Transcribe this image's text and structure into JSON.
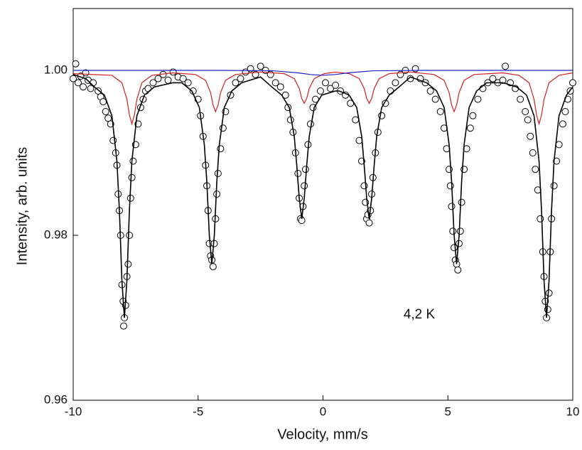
{
  "chart_data": {
    "type": "scatter",
    "xlabel": "Velocity, mm/s",
    "ylabel": "Intensity, arb. units",
    "annotation": "4,2 K",
    "xlim": [
      -10,
      10
    ],
    "ylim": [
      0.96,
      1.0075
    ],
    "xticks": [
      -10,
      -5,
      0,
      5,
      10
    ],
    "yticks": [
      0.96,
      0.98,
      {
        "value": 1.0,
        "label": "1.00"
      }
    ],
    "series": [
      {
        "type": "scatter",
        "color": "#000000",
        "x": [
          -10,
          -9.9,
          -9.8,
          -9.7,
          -9.6,
          -9.5,
          -9.4,
          -9.3,
          -9.2,
          -9.0,
          -8.9,
          -8.8,
          -8.7,
          -8.6,
          -8.5,
          -8.4,
          -8.3,
          -8.25,
          -8.2,
          -8.15,
          -8.1,
          -8.05,
          -8.0,
          -7.98,
          -7.95,
          -7.9,
          -7.85,
          -7.8,
          -7.75,
          -7.7,
          -7.65,
          -7.6,
          -7.5,
          -7.4,
          -7.3,
          -7.2,
          -7.1,
          -7.0,
          -6.8,
          -6.6,
          -6.4,
          -6.2,
          -6.0,
          -5.8,
          -5.6,
          -5.4,
          -5.2,
          -5.0,
          -4.9,
          -4.8,
          -4.7,
          -4.65,
          -4.6,
          -4.55,
          -4.5,
          -4.45,
          -4.4,
          -4.35,
          -4.3,
          -4.25,
          -4.2,
          -4.1,
          -4.0,
          -3.9,
          -3.7,
          -3.5,
          -3.3,
          -3.1,
          -2.9,
          -2.7,
          -2.5,
          -2.3,
          -2.1,
          -1.9,
          -1.7,
          -1.5,
          -1.4,
          -1.3,
          -1.2,
          -1.1,
          -1.0,
          -0.95,
          -0.9,
          -0.85,
          -0.8,
          -0.75,
          -0.7,
          -0.6,
          -0.5,
          -0.4,
          -0.3,
          -0.1,
          0.1,
          0.3,
          0.5,
          0.7,
          0.9,
          1.1,
          1.3,
          1.45,
          1.55,
          1.65,
          1.7,
          1.75,
          1.8,
          1.85,
          1.9,
          1.95,
          2.0,
          2.1,
          2.2,
          2.35,
          2.5,
          2.7,
          2.9,
          3.1,
          3.3,
          3.5,
          3.7,
          3.9,
          4.1,
          4.3,
          4.5,
          4.7,
          4.85,
          4.95,
          5.05,
          5.1,
          5.15,
          5.2,
          5.25,
          5.3,
          5.35,
          5.4,
          5.45,
          5.5,
          5.55,
          5.65,
          5.75,
          5.9,
          6.0,
          6.2,
          6.4,
          6.6,
          6.8,
          7.0,
          7.2,
          7.3,
          7.5,
          7.7,
          7.9,
          8.1,
          8.2,
          8.3,
          8.4,
          8.5,
          8.6,
          8.7,
          8.8,
          8.85,
          8.9,
          8.95,
          9.0,
          9.05,
          9.1,
          9.15,
          9.25,
          9.35,
          9.45,
          9.6,
          9.7,
          9.8,
          9.9,
          10.0
        ],
        "values": [
          0.999,
          1.0008,
          0.9985,
          0.9993,
          0.998,
          0.9997,
          0.9988,
          0.9978,
          0.9985,
          0.9975,
          0.9968,
          0.9962,
          0.995,
          0.9942,
          0.9935,
          0.9915,
          0.99,
          0.9885,
          0.985,
          0.983,
          0.98,
          0.974,
          0.972,
          0.969,
          0.97,
          0.9715,
          0.975,
          0.9765,
          0.98,
          0.9845,
          0.987,
          0.989,
          0.991,
          0.9935,
          0.9955,
          0.9965,
          0.9975,
          0.9978,
          0.9985,
          0.999,
          0.9995,
          0.9988,
          0.9998,
          0.9992,
          0.999,
          0.9985,
          0.9975,
          0.9965,
          0.9945,
          0.992,
          0.9885,
          0.986,
          0.983,
          0.979,
          0.9775,
          0.977,
          0.9762,
          0.979,
          0.982,
          0.985,
          0.9875,
          0.9905,
          0.993,
          0.995,
          0.997,
          0.9985,
          0.999,
          0.9998,
          1.0002,
          0.9995,
          1.0005,
          1.0,
          0.9995,
          0.9985,
          0.998,
          0.997,
          0.9955,
          0.994,
          0.9925,
          0.99,
          0.9875,
          0.9845,
          0.982,
          0.9818,
          0.9835,
          0.986,
          0.988,
          0.991,
          0.9935,
          0.9955,
          0.9965,
          0.9975,
          0.9985,
          0.9978,
          0.9982,
          0.9975,
          0.997,
          0.996,
          0.994,
          0.9915,
          0.989,
          0.986,
          0.984,
          0.982,
          0.9825,
          0.9815,
          0.983,
          0.985,
          0.987,
          0.99,
          0.9925,
          0.9945,
          0.996,
          0.9975,
          0.9985,
          0.9995,
          1.0,
          0.999,
          1.0002,
          0.999,
          0.9985,
          0.9975,
          0.9965,
          0.995,
          0.993,
          0.9905,
          0.988,
          0.986,
          0.9835,
          0.9805,
          0.9785,
          0.977,
          0.9765,
          0.9758,
          0.979,
          0.9805,
          0.984,
          0.988,
          0.9905,
          0.993,
          0.9945,
          0.9965,
          0.9978,
          0.9985,
          0.999,
          0.9985,
          0.9988,
          1.0005,
          0.9985,
          0.9978,
          0.9965,
          0.995,
          0.994,
          0.992,
          0.99,
          0.988,
          0.9855,
          0.982,
          0.978,
          0.975,
          0.972,
          0.97,
          0.971,
          0.973,
          0.978,
          0.982,
          0.986,
          0.989,
          0.991,
          0.9935,
          0.995,
          0.9965,
          0.9975,
          0.9985
        ]
      },
      {
        "type": "line",
        "color": "#d42020",
        "x": [
          -10,
          -8.45,
          -8.05,
          -7.85,
          -7.75,
          -7.65,
          -7.55,
          -7.45,
          -7.25,
          -6.85,
          -6,
          -5.1,
          -4.7,
          -4.5,
          -4.4,
          -4.3,
          -4.2,
          -4.1,
          -3.9,
          -3.5,
          -2.5,
          -1.55,
          -1.15,
          -0.95,
          -0.85,
          -0.75,
          -0.65,
          -0.55,
          -0.35,
          0.05,
          0.5,
          1.05,
          1.45,
          1.65,
          1.75,
          1.85,
          1.95,
          2.05,
          2.25,
          2.65,
          3.5,
          4.45,
          4.85,
          5.05,
          5.15,
          5.25,
          5.35,
          5.45,
          5.65,
          6.05,
          7.2,
          7.85,
          8.25,
          8.45,
          8.55,
          8.65,
          8.75,
          8.85,
          9.05,
          9.45,
          10
        ],
        "values": [
          0.9996,
          0.9994,
          0.9985,
          0.9965,
          0.9946,
          0.9935,
          0.9946,
          0.9965,
          0.9985,
          0.9994,
          0.9997,
          0.9995,
          0.9988,
          0.9973,
          0.9958,
          0.995,
          0.9958,
          0.9973,
          0.9988,
          0.9995,
          0.9998,
          0.9996,
          0.999,
          0.9978,
          0.9966,
          0.996,
          0.9966,
          0.9978,
          0.999,
          0.9996,
          0.9998,
          0.9996,
          0.999,
          0.9978,
          0.9966,
          0.996,
          0.9966,
          0.9978,
          0.999,
          0.9996,
          0.9998,
          0.9995,
          0.9988,
          0.9973,
          0.9958,
          0.995,
          0.9958,
          0.9973,
          0.9988,
          0.9995,
          0.9997,
          0.9994,
          0.9985,
          0.9965,
          0.9946,
          0.9935,
          0.9946,
          0.9965,
          0.9985,
          0.9994,
          0.9997
        ]
      },
      {
        "type": "line",
        "color": "#2020c8",
        "x": [
          -10,
          -4,
          -2,
          -1,
          -0.5,
          0,
          0.5,
          1,
          2,
          4,
          10
        ],
        "values": [
          1.0,
          1.0,
          0.99995,
          0.9997,
          0.9995,
          0.9994,
          0.9995,
          0.9997,
          0.99995,
          1.0,
          1.0
        ]
      },
      {
        "type": "line",
        "color": "#000000",
        "x": [
          -10,
          -9.5,
          -9.15,
          -8.75,
          -8.45,
          -8.25,
          -8.15,
          -8.05,
          -7.95,
          -7.85,
          -7.75,
          -7.65,
          -7.45,
          -7.15,
          -6.75,
          -6,
          -5.65,
          -5.25,
          -4.95,
          -4.75,
          -4.65,
          -4.55,
          -4.45,
          -4.35,
          -4.25,
          -4.15,
          -3.95,
          -3.65,
          -3.25,
          -2.5,
          -2.05,
          -1.65,
          -1.35,
          -1.15,
          -1.05,
          -0.95,
          -0.85,
          -0.75,
          -0.65,
          -0.55,
          -0.35,
          -0.05,
          0.5,
          0.65,
          1.05,
          1.35,
          1.55,
          1.65,
          1.75,
          1.85,
          1.95,
          2.05,
          2.15,
          2.35,
          2.65,
          3.05,
          3.5,
          4.15,
          4.55,
          4.85,
          5.05,
          5.15,
          5.25,
          5.35,
          5.45,
          5.55,
          5.65,
          5.85,
          6.15,
          6.55,
          7.2,
          7.75,
          8.15,
          8.45,
          8.65,
          8.75,
          8.85,
          8.95,
          9.05,
          9.15,
          9.25,
          9.45,
          9.75,
          10
        ],
        "values": [
          0.9995,
          0.999,
          0.998,
          0.997,
          0.9945,
          0.989,
          0.983,
          0.9745,
          0.97,
          0.9745,
          0.983,
          0.989,
          0.9945,
          0.997,
          0.998,
          0.9985,
          0.9985,
          0.9975,
          0.9955,
          0.991,
          0.9865,
          0.98,
          0.9765,
          0.98,
          0.9865,
          0.991,
          0.9955,
          0.9975,
          0.9985,
          0.9992,
          0.998,
          0.997,
          0.9955,
          0.992,
          0.9885,
          0.9845,
          0.982,
          0.9845,
          0.9885,
          0.992,
          0.9955,
          0.997,
          0.9975,
          0.9975,
          0.997,
          0.9955,
          0.992,
          0.9885,
          0.9845,
          0.982,
          0.9845,
          0.9885,
          0.992,
          0.9955,
          0.997,
          0.998,
          0.9992,
          0.9985,
          0.9975,
          0.9955,
          0.991,
          0.9865,
          0.98,
          0.9765,
          0.98,
          0.9865,
          0.991,
          0.9955,
          0.9975,
          0.9985,
          0.9985,
          0.998,
          0.997,
          0.9945,
          0.989,
          0.983,
          0.9745,
          0.97,
          0.9745,
          0.983,
          0.989,
          0.9945,
          0.997,
          0.998
        ]
      }
    ]
  }
}
